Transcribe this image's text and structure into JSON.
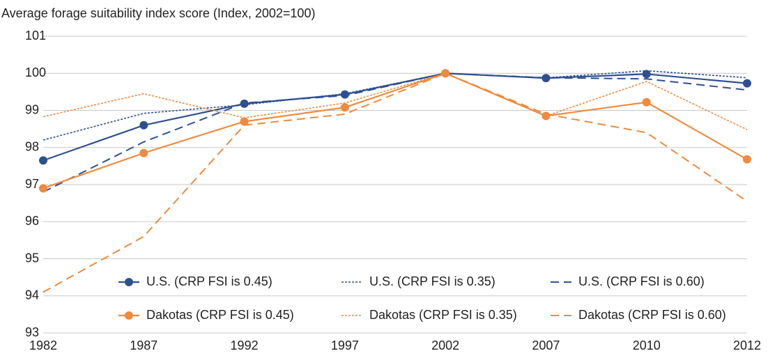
{
  "chart_data": {
    "type": "line",
    "title": "Average forage suitability index score (Index, 2002=100)",
    "categories": [
      "1982",
      "1987",
      "1992",
      "1997",
      "2002",
      "2007",
      "2010",
      "2012"
    ],
    "ylim": [
      93,
      101
    ],
    "yticks": [
      93,
      94,
      95,
      96,
      97,
      98,
      99,
      100,
      101
    ],
    "grid": true,
    "legend": "bottom",
    "series": [
      {
        "name": "U.S. (CRP FSI is 0.45)",
        "color": "#2e5090",
        "style": "solid",
        "marker": true,
        "values": [
          97.65,
          98.6,
          99.18,
          99.43,
          100,
          99.87,
          99.98,
          99.73
        ]
      },
      {
        "name": "U.S. (CRP FSI is 0.35)",
        "color": "#2e5090",
        "style": "dotted",
        "marker": false,
        "values": [
          98.2,
          98.92,
          99.15,
          99.45,
          100,
          99.88,
          100.07,
          99.88
        ]
      },
      {
        "name": "U.S. (CRP FSI is 0.60)",
        "color": "#2e5090",
        "style": "dashed",
        "marker": false,
        "values": [
          96.8,
          98.15,
          99.2,
          99.4,
          100,
          99.88,
          99.85,
          99.55
        ]
      },
      {
        "name": "Dakotas (CRP FSI is 0.45)",
        "color": "#f08a3c",
        "style": "solid",
        "marker": true,
        "values": [
          96.9,
          97.85,
          98.7,
          99.08,
          100,
          98.85,
          99.22,
          97.68
        ]
      },
      {
        "name": "Dakotas (CRP FSI is 0.35)",
        "color": "#f08a3c",
        "style": "dotted",
        "marker": false,
        "values": [
          98.83,
          99.45,
          98.8,
          99.2,
          100,
          98.85,
          99.78,
          98.48
        ]
      },
      {
        "name": "Dakotas (CRP FSI is 0.60)",
        "color": "#f08a3c",
        "style": "dashed",
        "marker": false,
        "values": [
          94.1,
          95.6,
          98.6,
          98.9,
          100,
          98.9,
          98.4,
          96.55
        ]
      }
    ]
  }
}
